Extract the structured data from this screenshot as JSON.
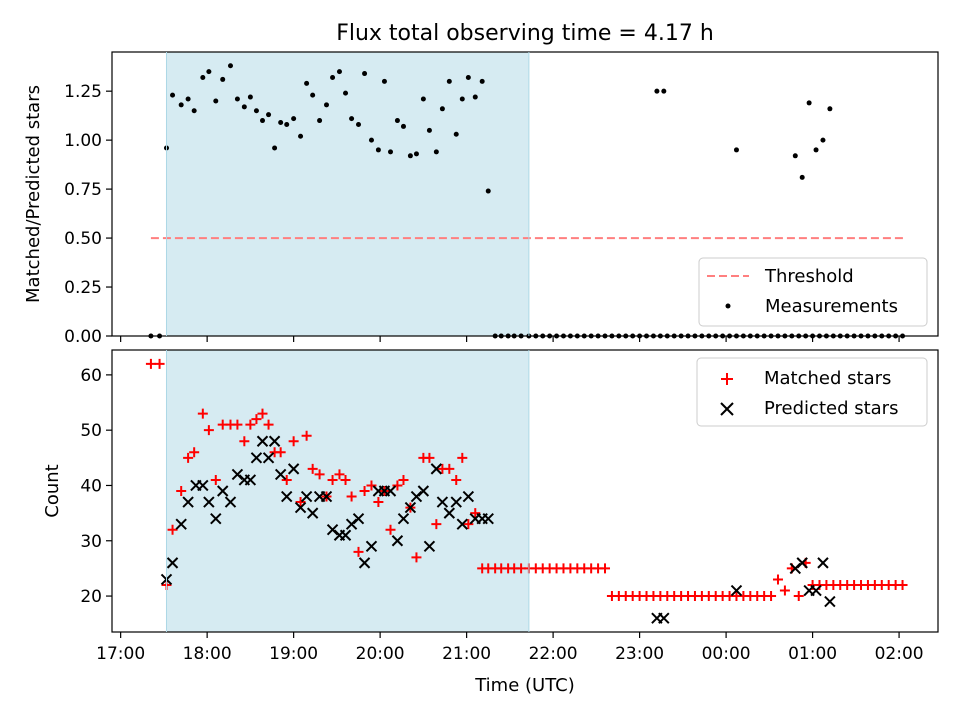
{
  "chart_data": {
    "title": "Flux total observing time = 4.17 h",
    "xlabel": "Time (UTC)",
    "x_unit": "hours since 17:00 UTC",
    "xlim": [
      -0.1,
      9.45
    ],
    "x_ticks": [
      0,
      1,
      2,
      3,
      4,
      5,
      6,
      7,
      8,
      9
    ],
    "x_tick_labels": [
      "17:00",
      "18:00",
      "19:00",
      "20:00",
      "21:00",
      "22:00",
      "23:00",
      "00:00",
      "01:00",
      "02:00"
    ],
    "shaded_interval": [
      0.53,
      4.72
    ],
    "top": {
      "type": "scatter",
      "ylabel": "Matched/Predicted stars",
      "ylim": [
        0,
        1.45
      ],
      "y_ticks": [
        0,
        0.25,
        0.5,
        0.75,
        1.0,
        1.25
      ],
      "y_tick_labels": [
        "0.00",
        "0.25",
        "0.50",
        "0.75",
        "1.00",
        "1.25"
      ],
      "threshold": {
        "name": "Threshold",
        "value": 0.5,
        "x_range": [
          0.35,
          9.05
        ],
        "color": "#ff7f7f"
      },
      "measurements": {
        "name": "Measurements",
        "x": [
          0.35,
          0.45,
          0.53,
          0.6,
          0.7,
          0.78,
          0.85,
          0.95,
          1.02,
          1.1,
          1.18,
          1.27,
          1.35,
          1.43,
          1.5,
          1.57,
          1.64,
          1.71,
          1.78,
          1.85,
          1.92,
          2.0,
          2.08,
          2.15,
          2.22,
          2.3,
          2.38,
          2.45,
          2.53,
          2.6,
          2.67,
          2.75,
          2.82,
          2.9,
          2.98,
          3.05,
          3.12,
          3.2,
          3.27,
          3.35,
          3.42,
          3.5,
          3.57,
          3.65,
          3.72,
          3.8,
          3.88,
          3.95,
          4.02,
          4.1,
          4.18,
          4.25,
          4.33,
          4.4,
          4.48,
          4.55,
          4.63,
          4.72,
          4.8,
          4.88,
          4.96,
          5.04,
          5.12,
          5.2,
          5.28,
          5.36,
          5.44,
          5.52,
          5.6,
          5.68,
          5.76,
          5.84,
          5.92,
          6.0,
          6.08,
          6.16,
          6.24,
          6.32,
          6.4,
          6.48,
          6.56,
          6.64,
          6.72,
          6.8,
          6.88,
          6.96,
          7.04,
          7.12,
          7.2,
          7.28,
          7.36,
          7.44,
          7.52,
          7.6,
          7.68,
          7.76,
          7.84,
          7.92,
          8.0,
          8.08,
          8.16,
          8.24,
          8.32,
          8.4,
          8.48,
          8.56,
          8.64,
          8.72,
          8.8,
          8.88,
          8.96,
          9.04,
          6.2,
          6.28,
          7.12,
          7.8,
          7.88,
          7.96,
          8.04,
          8.12,
          8.2
        ],
        "y": [
          0,
          0,
          0.96,
          1.23,
          1.18,
          1.21,
          1.15,
          1.32,
          1.35,
          1.2,
          1.31,
          1.38,
          1.21,
          1.17,
          1.22,
          1.15,
          1.1,
          1.13,
          0.96,
          1.09,
          1.08,
          1.11,
          1.02,
          1.29,
          1.23,
          1.1,
          1.18,
          1.32,
          1.35,
          1.24,
          1.11,
          1.08,
          1.34,
          1.0,
          0.95,
          1.3,
          0.94,
          1.1,
          1.07,
          0.92,
          0.93,
          1.21,
          1.05,
          0.94,
          1.16,
          1.3,
          1.03,
          1.21,
          1.32,
          1.22,
          1.3,
          0.74,
          0,
          0,
          0,
          0,
          0,
          0,
          0,
          0,
          0,
          0,
          0,
          0,
          0,
          0,
          0,
          0,
          0,
          0,
          0,
          0,
          0,
          0,
          0,
          0,
          0,
          0,
          0,
          0,
          0,
          0,
          0,
          0,
          0,
          0,
          0,
          0,
          0,
          0,
          0,
          0,
          0,
          0,
          0,
          0,
          0,
          0,
          0,
          0,
          0,
          0,
          0,
          0,
          0,
          0,
          0,
          0,
          0,
          0,
          0,
          0,
          1.25,
          1.25,
          0.95,
          0.92,
          0.81,
          1.19,
          0.95,
          1.0,
          1.16
        ]
      },
      "legend": {
        "position": "lower right",
        "entries": [
          "Threshold",
          "Measurements"
        ]
      }
    },
    "bottom": {
      "type": "scatter",
      "ylabel": "Count",
      "ylim": [
        13.5,
        64.5
      ],
      "y_ticks": [
        20,
        30,
        40,
        50,
        60
      ],
      "y_tick_labels": [
        "20",
        "30",
        "40",
        "50",
        "60"
      ],
      "legend": {
        "position": "top right",
        "entries": [
          "Matched stars",
          "Predicted stars"
        ]
      },
      "series": [
        {
          "name": "Matched stars",
          "marker": "+",
          "color": "#ff0000",
          "x": [
            0.35,
            0.45,
            0.53,
            0.6,
            0.7,
            0.78,
            0.85,
            0.95,
            1.02,
            1.1,
            1.18,
            1.27,
            1.35,
            1.43,
            1.5,
            1.57,
            1.64,
            1.71,
            1.78,
            1.85,
            1.92,
            2.0,
            2.08,
            2.15,
            2.22,
            2.3,
            2.38,
            2.45,
            2.53,
            2.6,
            2.67,
            2.75,
            2.82,
            2.9,
            2.98,
            3.05,
            3.12,
            3.2,
            3.27,
            3.35,
            3.42,
            3.5,
            3.57,
            3.65,
            3.72,
            3.8,
            3.88,
            3.95,
            4.02,
            4.1,
            4.18,
            4.25,
            4.33,
            4.4,
            4.48,
            4.55,
            4.63,
            4.72,
            4.8,
            4.88,
            4.96,
            5.04,
            5.12,
            5.2,
            5.28,
            5.36,
            5.44,
            5.52,
            5.6,
            5.68,
            5.76,
            5.84,
            5.92,
            6.0,
            6.08,
            6.16,
            6.24,
            6.32,
            6.4,
            6.48,
            6.56,
            6.64,
            6.72,
            6.8,
            6.88,
            6.96,
            7.04,
            7.12,
            7.2,
            7.28,
            7.36,
            7.44,
            7.52,
            7.6,
            7.68,
            7.76,
            7.84,
            7.92,
            8.0,
            8.08,
            8.16,
            8.24,
            8.32,
            8.4,
            8.48,
            8.56,
            8.64,
            8.72,
            8.8,
            8.88,
            8.96,
            9.04
          ],
          "y": [
            62,
            62,
            22,
            32,
            39,
            45,
            46,
            53,
            50,
            41,
            51,
            51,
            51,
            48,
            51,
            52,
            53,
            51,
            46,
            46,
            41,
            48,
            37,
            49,
            43,
            42,
            38,
            41,
            42,
            41,
            38,
            28,
            39,
            40,
            37,
            39,
            32,
            40,
            41,
            36,
            27,
            45,
            45,
            33,
            43,
            43,
            41,
            45,
            33,
            35,
            25,
            25,
            25,
            25,
            25,
            25,
            25,
            25,
            25,
            25,
            25,
            25,
            25,
            25,
            25,
            25,
            25,
            25,
            25,
            20,
            20,
            20,
            20,
            20,
            20,
            20,
            20,
            20,
            20,
            20,
            20,
            20,
            20,
            20,
            20,
            20,
            20,
            20,
            20,
            20,
            20,
            20,
            20,
            23,
            21,
            25,
            20,
            26,
            22,
            22,
            22,
            22,
            22,
            22,
            22,
            22,
            22,
            22,
            22,
            22,
            22,
            22
          ]
        },
        {
          "name": "Predicted stars",
          "marker": "x",
          "color": "#000000",
          "x": [
            0.53,
            0.6,
            0.7,
            0.78,
            0.87,
            0.95,
            1.02,
            1.1,
            1.18,
            1.27,
            1.35,
            1.43,
            1.5,
            1.57,
            1.64,
            1.71,
            1.78,
            1.85,
            1.92,
            2.0,
            2.08,
            2.15,
            2.22,
            2.3,
            2.38,
            2.45,
            2.53,
            2.6,
            2.67,
            2.75,
            2.82,
            2.9,
            2.98,
            3.05,
            3.12,
            3.2,
            3.27,
            3.35,
            3.42,
            3.5,
            3.57,
            3.65,
            3.72,
            3.8,
            3.88,
            3.95,
            4.02,
            4.1,
            4.18,
            4.25,
            6.2,
            6.28,
            7.12,
            7.8,
            7.88,
            7.96,
            8.04,
            8.12,
            8.2
          ],
          "y": [
            23,
            26,
            33,
            37,
            40,
            40,
            37,
            34,
            39,
            37,
            42,
            41,
            41,
            45,
            48,
            45,
            48,
            42,
            38,
            43,
            36,
            38,
            35,
            38,
            38,
            32,
            31,
            31,
            33,
            34,
            26,
            29,
            39,
            39,
            39,
            30,
            34,
            36,
            38,
            39,
            29,
            43,
            37,
            35,
            37,
            33,
            38,
            34,
            34,
            34,
            16,
            16,
            21,
            25,
            26,
            21,
            21,
            26,
            19
          ]
        }
      ]
    }
  }
}
